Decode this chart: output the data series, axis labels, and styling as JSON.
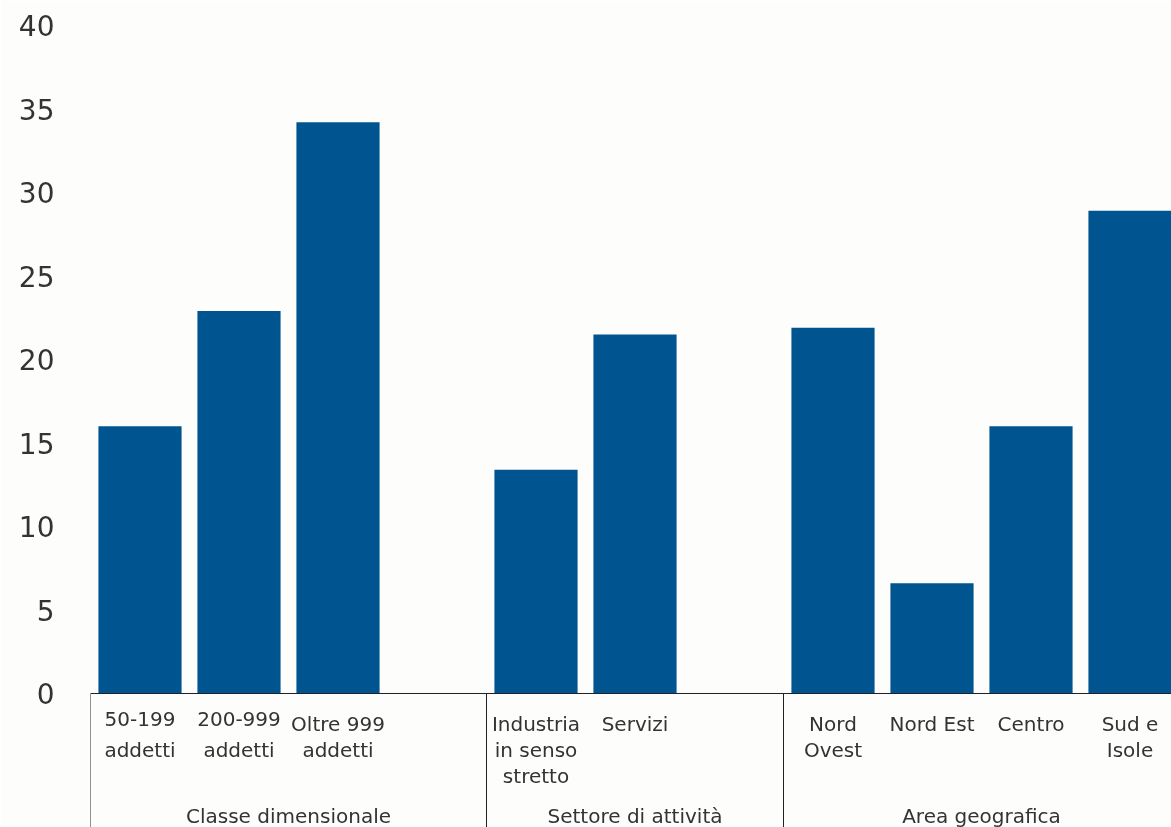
{
  "chart_data": {
    "type": "bar",
    "categories": [
      "50-199 addetti",
      "200-999 addetti",
      "Oltre 999 addetti",
      null,
      "Industria in senso stretto",
      "Servizi",
      null,
      "Nord Ovest",
      "Nord Est",
      "Centro",
      "Sud e Isole"
    ],
    "values": [
      16.0,
      22.9,
      34.2,
      null,
      13.4,
      21.5,
      null,
      21.9,
      6.6,
      16.0,
      28.9
    ],
    "color": "#00548f",
    "ylim": [
      0,
      40
    ],
    "yticks": [
      0,
      5,
      10,
      15,
      20,
      25,
      30,
      35,
      40
    ],
    "grid": false,
    "annotations": [
      "Classe dimensionale",
      "Settore di attività",
      "Area geografica"
    ]
  }
}
